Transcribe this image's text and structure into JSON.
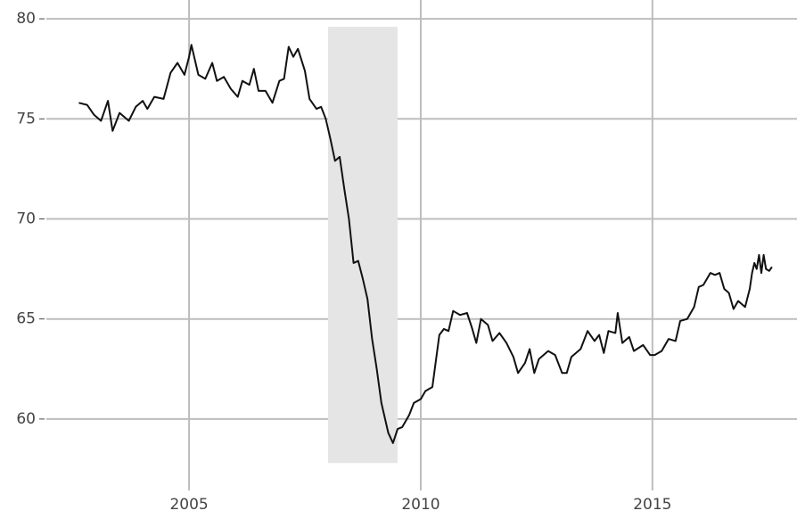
{
  "chart_data": {
    "type": "line",
    "x": [
      2002.62,
      2002.8,
      2002.95,
      2003.1,
      2003.25,
      2003.35,
      2003.5,
      2003.7,
      2003.85,
      2004.0,
      2004.1,
      2004.25,
      2004.45,
      2004.6,
      2004.75,
      2004.9,
      2005.0,
      2005.05,
      2005.2,
      2005.35,
      2005.5,
      2005.6,
      2005.75,
      2005.9,
      2006.05,
      2006.15,
      2006.3,
      2006.4,
      2006.5,
      2006.65,
      2006.8,
      2006.95,
      2007.05,
      2007.15,
      2007.25,
      2007.35,
      2007.5,
      2007.6,
      2007.75,
      2007.85,
      2007.95,
      2008.05,
      2008.15,
      2008.25,
      2008.35,
      2008.45,
      2008.55,
      2008.65,
      2008.75,
      2008.85,
      2008.95,
      2009.05,
      2009.15,
      2009.3,
      2009.4,
      2009.5,
      2009.6,
      2009.75,
      2009.85,
      2010.0,
      2010.1,
      2010.25,
      2010.4,
      2010.5,
      2010.6,
      2010.7,
      2010.85,
      2011.0,
      2011.1,
      2011.2,
      2011.3,
      2011.45,
      2011.55,
      2011.7,
      2011.85,
      2012.0,
      2012.1,
      2012.25,
      2012.35,
      2012.45,
      2012.55,
      2012.75,
      2012.9,
      2013.05,
      2013.15,
      2013.25,
      2013.45,
      2013.6,
      2013.75,
      2013.85,
      2013.95,
      2014.05,
      2014.2,
      2014.25,
      2014.35,
      2014.5,
      2014.6,
      2014.8,
      2014.95,
      2015.05,
      2015.2,
      2015.35,
      2015.5,
      2015.6,
      2015.75,
      2015.9,
      2016.0,
      2016.1,
      2016.25,
      2016.35,
      2016.45,
      2016.55,
      2016.65,
      2016.75,
      2016.85,
      2017.0,
      2017.1,
      2017.15,
      2017.2,
      2017.25,
      2017.3,
      2017.35,
      2017.4,
      2017.45,
      2017.52,
      2017.58
    ],
    "series": [
      {
        "color": "#111111",
        "values": [
          75.8,
          75.7,
          75.2,
          74.9,
          75.9,
          74.4,
          75.3,
          74.9,
          75.6,
          75.9,
          75.5,
          76.1,
          76.0,
          77.3,
          77.8,
          77.2,
          78.1,
          78.7,
          77.2,
          77.0,
          77.8,
          76.9,
          77.1,
          76.5,
          76.1,
          76.9,
          76.7,
          77.5,
          76.4,
          76.4,
          75.8,
          76.9,
          77.0,
          78.6,
          78.1,
          78.5,
          77.4,
          76.0,
          75.5,
          75.6,
          75.0,
          74.0,
          72.9,
          73.1,
          71.5,
          70.0,
          67.8,
          67.9,
          67.0,
          66.0,
          64.0,
          62.5,
          60.8,
          59.3,
          58.8,
          59.5,
          59.6,
          60.2,
          60.8,
          61.0,
          61.4,
          61.6,
          64.2,
          64.5,
          64.4,
          65.4,
          65.2,
          65.3,
          64.6,
          63.8,
          65.0,
          64.7,
          63.9,
          64.3,
          63.8,
          63.1,
          62.3,
          62.8,
          63.5,
          62.3,
          63.0,
          63.4,
          63.2,
          62.3,
          62.3,
          63.1,
          63.5,
          64.4,
          63.9,
          64.2,
          63.3,
          64.4,
          64.3,
          65.3,
          63.8,
          64.1,
          63.4,
          63.7,
          63.2,
          63.2,
          63.4,
          64.0,
          63.9,
          64.9,
          65.0,
          65.6,
          66.6,
          66.7,
          67.3,
          67.2,
          67.3,
          66.5,
          66.3,
          65.5,
          65.9,
          65.6,
          66.5,
          67.3,
          67.8,
          67.5,
          68.2,
          67.3,
          68.2,
          67.5,
          67.4,
          67.6
        ]
      }
    ],
    "shade": {
      "x": [
        2008.0,
        2009.5
      ],
      "y": [
        57.8,
        79.6
      ],
      "color": "#e5e5e5"
    },
    "xlim": [
      2001.92,
      2018.12
    ],
    "ylim": [
      56.43,
      80.94
    ],
    "xticks": [
      2005,
      2010,
      2015
    ],
    "yticks": [
      60,
      65,
      70,
      75,
      80
    ],
    "grid": true
  }
}
